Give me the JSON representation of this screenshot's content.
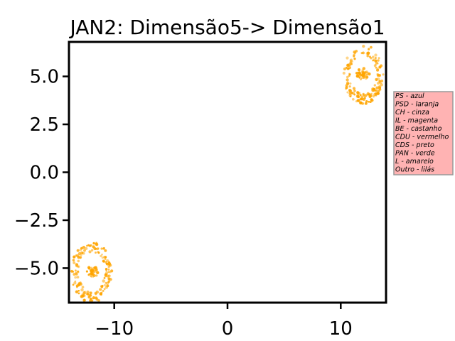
{
  "chart_data": {
    "type": "scatter",
    "title": "JAN2: Dimensão5-> Dimensão1",
    "xlabel": "",
    "ylabel": "",
    "xlim": [
      -14,
      14
    ],
    "ylim": [
      -6.8,
      6.8
    ],
    "xticks": [
      -10,
      0,
      10
    ],
    "xtick_labels": [
      "−10",
      "0",
      "10"
    ],
    "yticks": [
      5.0,
      2.5,
      0.0,
      -2.5,
      -5.0
    ],
    "ytick_labels": [
      "5.0",
      "2.5",
      "0.0",
      "−2.5",
      "−5.0"
    ],
    "grid": false,
    "legend_placement": "right, outside plot",
    "point_color": "#ffa500",
    "legend_box_color": "#ffb3b3",
    "legend_lines": [
      "PS - azul",
      "PSD - laranja",
      "CH - cinza",
      "IL - magenta",
      "BE - castanho",
      "CDU - vermelho",
      "CDS - preto",
      "PAN - verde",
      "L - amarelo",
      "Outro - lilás"
    ],
    "clusters": [
      {
        "center_x": 12.0,
        "center_y": 5.1,
        "x_range": [
          10.2,
          13.8
        ],
        "y_range": [
          3.5,
          6.6
        ]
      },
      {
        "center_x": -12.0,
        "center_y": -5.2,
        "x_range": [
          -13.8,
          -10.2
        ],
        "y_range": [
          -6.6,
          -3.4
        ]
      }
    ]
  }
}
